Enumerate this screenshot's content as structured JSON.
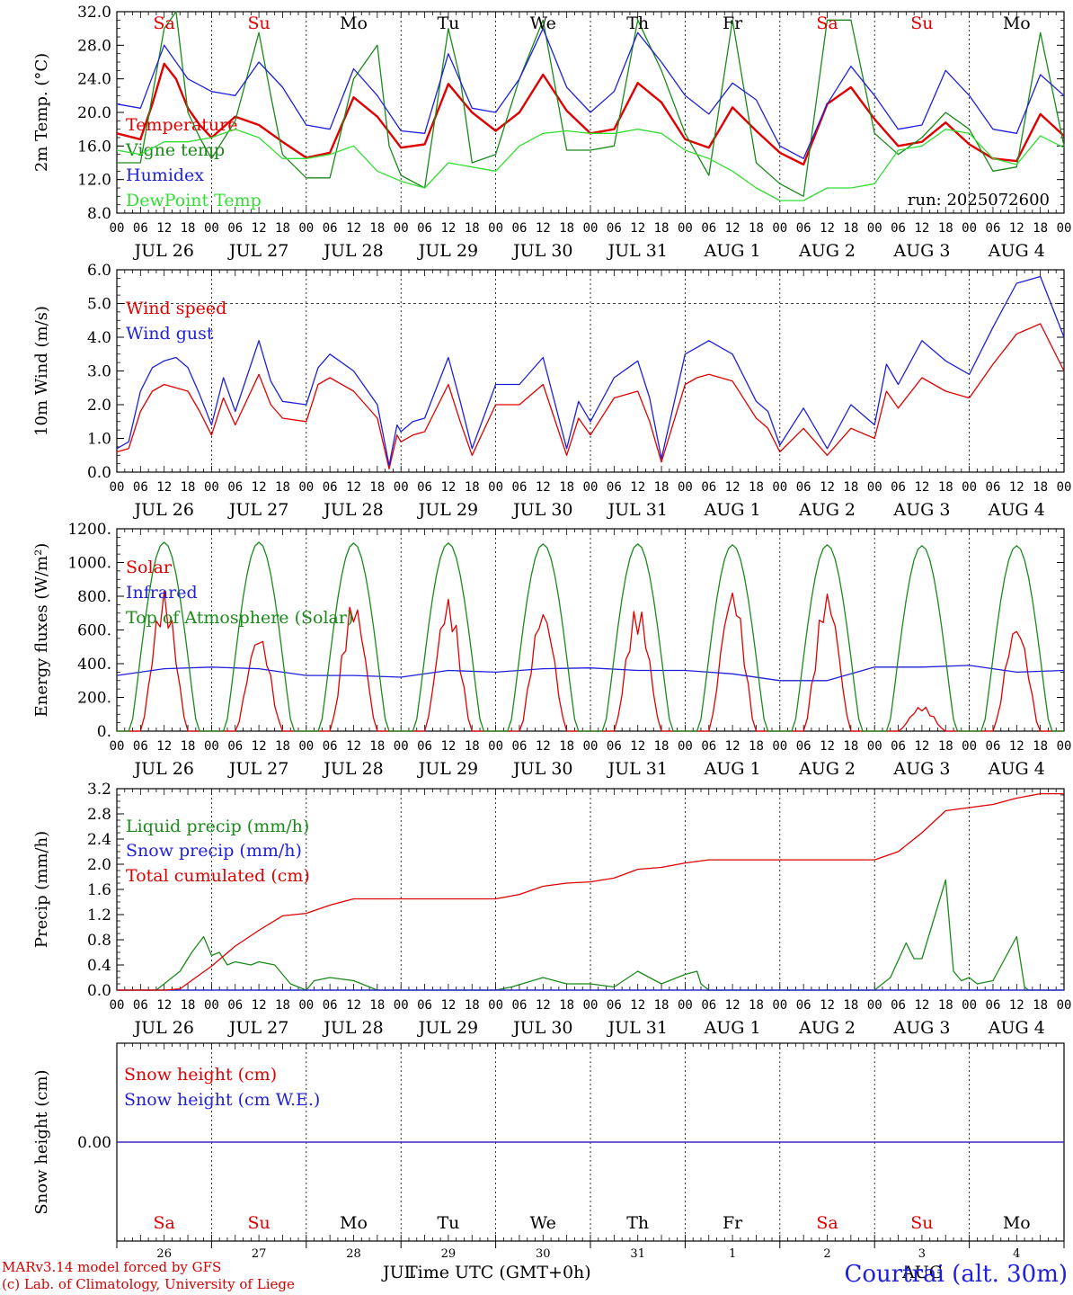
{
  "run_label": "run: 2025072600",
  "hour_ticks": [
    "00",
    "06",
    "12",
    "18"
  ],
  "date_labels": [
    "JUL 26",
    "JUL 27",
    "JUL 28",
    "JUL 29",
    "JUL 30",
    "JUL 31",
    "AUG  1",
    "AUG  2",
    "AUG  3",
    "AUG  4"
  ],
  "weekdays": [
    "Sa",
    "Su",
    "Mo",
    "Tu",
    "We",
    "Th",
    "Fr",
    "Sa",
    "Su",
    "Mo"
  ],
  "weekday_colors": [
    "#e00000",
    "#e00000",
    "#000000",
    "#000000",
    "#000000",
    "#000000",
    "#000000",
    "#e00000",
    "#e00000",
    "#000000"
  ],
  "day_numbers": [
    "26",
    "27",
    "28",
    "29",
    "30",
    "31",
    "1",
    "2",
    "3",
    "4"
  ],
  "footer": {
    "model_line": "MARv3.14 model forced by GFS",
    "copyright_line": "(c) Lab. of Climatology, University of Liege",
    "x_title": "Time UTC (GMT+0h)",
    "month_jul": "JUL",
    "month_aug": "AUG",
    "station": "Courtrai (alt. 30m)"
  },
  "chart_data": [
    {
      "type": "line",
      "ylabel": "2m Temp. (°C)",
      "ylim": [
        8,
        32
      ],
      "yticks": [
        "8.0",
        "12.0",
        "16.0",
        "20.0",
        "24.0",
        "28.0",
        "32.0"
      ],
      "x_unit": "hours since JUL 26 00 UTC",
      "series": [
        {
          "name": "Temperature",
          "color": "#e00000",
          "x": [
            0,
            6,
            9,
            12,
            15,
            18,
            21,
            24,
            30,
            36,
            42,
            48,
            54,
            60,
            66,
            72,
            78,
            84,
            90,
            96,
            102,
            108,
            114,
            120,
            126,
            132,
            138,
            144,
            150,
            156,
            162,
            168,
            174,
            180,
            186,
            192,
            198,
            204,
            210,
            216,
            222,
            228,
            234,
            240
          ],
          "values": [
            17.5,
            16.8,
            21,
            25.8,
            24,
            20.5,
            18.5,
            17,
            19.5,
            18.5,
            16.5,
            14.6,
            15.2,
            21.8,
            19.5,
            15.8,
            16.2,
            23.4,
            20,
            17.8,
            20,
            24.5,
            20.2,
            17.5,
            18,
            23.5,
            21.2,
            16.8,
            15.8,
            20.6,
            17.8,
            15.2,
            13.8,
            21,
            23,
            19.2,
            16,
            16.5,
            18.8,
            16.2,
            14.5,
            14.2,
            19.8,
            17.2
          ]
        },
        {
          "name": "Vigne temp",
          "color": "#1a8a1a",
          "x": [
            0,
            6,
            12,
            15,
            18,
            21,
            24,
            30,
            36,
            39,
            42,
            48,
            54,
            60,
            66,
            69,
            72,
            78,
            84,
            87,
            90,
            96,
            102,
            108,
            114,
            120,
            126,
            132,
            138,
            144,
            150,
            156,
            162,
            168,
            174,
            180,
            186,
            192,
            198,
            204,
            210,
            216,
            222,
            228,
            234,
            240
          ],
          "values": [
            14,
            14,
            30,
            32,
            20,
            17,
            14.5,
            19,
            29.5,
            22,
            15,
            12.2,
            12.2,
            24,
            28,
            16,
            12.5,
            11,
            30,
            24,
            14,
            15,
            24,
            31,
            15.5,
            15.5,
            16,
            31,
            25,
            17.5,
            12.5,
            31,
            14,
            11.5,
            10,
            31,
            31,
            17.5,
            15,
            17,
            20,
            18,
            13,
            13.5,
            29.5,
            16
          ]
        },
        {
          "name": "Humidex",
          "color": "#1f1fdd",
          "x": [
            0,
            6,
            12,
            18,
            24,
            30,
            36,
            42,
            48,
            54,
            60,
            66,
            72,
            78,
            84,
            90,
            96,
            102,
            108,
            114,
            120,
            126,
            132,
            138,
            144,
            150,
            156,
            162,
            168,
            174,
            180,
            186,
            192,
            198,
            204,
            210,
            216,
            222,
            228,
            234,
            240
          ],
          "values": [
            21,
            20.5,
            28,
            24,
            22.5,
            22,
            26,
            23,
            18.5,
            18,
            25.2,
            22,
            17.8,
            17.5,
            27,
            20.5,
            20,
            24,
            30,
            23,
            20,
            22.5,
            29.5,
            26,
            22,
            19.8,
            23.5,
            21.5,
            16,
            14.5,
            21,
            25.5,
            22,
            18,
            18.5,
            25,
            22,
            18,
            17.5,
            24.5,
            22
          ]
        },
        {
          "name": "DewPoint Temp",
          "color": "#33dd33",
          "x": [
            0,
            6,
            12,
            18,
            24,
            30,
            36,
            42,
            48,
            54,
            60,
            66,
            72,
            78,
            84,
            90,
            96,
            102,
            108,
            114,
            120,
            126,
            132,
            138,
            144,
            150,
            156,
            162,
            168,
            174,
            180,
            186,
            192,
            198,
            204,
            210,
            216,
            222,
            228,
            234,
            240
          ],
          "values": [
            15.5,
            15,
            16.5,
            16.5,
            17,
            18,
            17,
            14.5,
            14.5,
            15,
            16,
            13,
            11.8,
            11,
            14,
            13.5,
            13,
            16,
            17.5,
            17.8,
            17.5,
            17.5,
            18,
            17.5,
            15.5,
            14.5,
            13,
            11,
            9.5,
            9.5,
            11,
            11,
            11.5,
            15.5,
            16,
            18,
            17.5,
            14.5,
            13.8,
            17.2,
            15.8
          ]
        }
      ]
    },
    {
      "type": "line",
      "ylabel": "10m Wind (m/s)",
      "ylim": [
        0,
        6
      ],
      "yticks": [
        "0.0",
        "1.0",
        "2.0",
        "3.0",
        "4.0",
        "5.0",
        "6.0"
      ],
      "reference_line": 5.0,
      "series": [
        {
          "name": "Wind speed",
          "color": "#e00000",
          "x": [
            0,
            3,
            6,
            9,
            12,
            15,
            18,
            21,
            24,
            27,
            30,
            36,
            39,
            42,
            48,
            51,
            54,
            60,
            66,
            69,
            71,
            72,
            75,
            78,
            84,
            87,
            90,
            96,
            102,
            108,
            114,
            117,
            120,
            126,
            132,
            135,
            138,
            144,
            147,
            150,
            156,
            162,
            165,
            168,
            174,
            180,
            186,
            192,
            195,
            198,
            204,
            210,
            216,
            222,
            228,
            234,
            240
          ],
          "values": [
            0.6,
            0.7,
            1.8,
            2.4,
            2.6,
            2.5,
            2.4,
            1.8,
            1.1,
            2.2,
            1.4,
            2.9,
            2,
            1.6,
            1.5,
            2.6,
            2.8,
            2.4,
            1.6,
            0.1,
            1.1,
            0.9,
            1.1,
            1.2,
            2.6,
            1.5,
            0.5,
            2,
            2,
            2.6,
            0.5,
            1.6,
            1.1,
            2.2,
            2.4,
            1.5,
            0.3,
            2.6,
            2.8,
            2.9,
            2.7,
            1.6,
            1.3,
            0.6,
            1.3,
            0.5,
            1.3,
            1,
            2.4,
            1.9,
            2.8,
            2.4,
            2.2,
            3.2,
            4.1,
            4.4,
            3
          ]
        },
        {
          "name": "Wind gust",
          "color": "#1f1fdd",
          "x": [
            0,
            3,
            6,
            9,
            12,
            15,
            18,
            21,
            24,
            27,
            30,
            36,
            39,
            42,
            48,
            51,
            54,
            60,
            66,
            69,
            71,
            72,
            75,
            78,
            84,
            87,
            90,
            96,
            102,
            108,
            114,
            117,
            120,
            126,
            132,
            135,
            138,
            144,
            147,
            150,
            156,
            162,
            165,
            168,
            174,
            180,
            186,
            192,
            195,
            198,
            204,
            210,
            216,
            222,
            228,
            234,
            240
          ],
          "values": [
            0.7,
            0.9,
            2.4,
            3.1,
            3.3,
            3.4,
            3.1,
            2.3,
            1.4,
            2.8,
            1.8,
            3.9,
            2.7,
            2.1,
            2,
            3.1,
            3.5,
            3,
            2,
            0.2,
            1.4,
            1.2,
            1.5,
            1.6,
            3.4,
            2.1,
            0.7,
            2.6,
            2.6,
            3.4,
            0.7,
            2.1,
            1.5,
            2.8,
            3.3,
            2.2,
            0.4,
            3.5,
            3.7,
            3.9,
            3.5,
            2.1,
            1.8,
            0.8,
            1.9,
            0.7,
            2,
            1.4,
            3.2,
            2.6,
            3.9,
            3.3,
            2.9,
            4.3,
            5.6,
            5.8,
            4
          ]
        }
      ]
    },
    {
      "type": "line",
      "ylabel": "Energy fluxes (W/m²)",
      "ylim": [
        0,
        1200
      ],
      "yticks": [
        "0.",
        "200.",
        "400.",
        "600.",
        "800.",
        "1000.",
        "1200."
      ],
      "series": [
        {
          "name": "Solar",
          "color": "#e00000",
          "peaks_hour_utc": [
            12,
            12,
            12,
            12,
            12,
            12,
            12,
            12,
            12,
            12
          ],
          "values_peak": [
            830,
            580,
            780,
            790,
            730,
            750,
            850,
            830,
            150,
            640
          ]
        },
        {
          "name": "Infrared",
          "color": "#1f1fdd",
          "x": [
            0,
            12,
            24,
            36,
            48,
            60,
            72,
            84,
            96,
            108,
            120,
            132,
            144,
            156,
            168,
            180,
            192,
            204,
            216,
            228,
            240
          ],
          "values": [
            330,
            370,
            380,
            370,
            330,
            330,
            320,
            360,
            350,
            370,
            375,
            360,
            360,
            340,
            300,
            300,
            380,
            380,
            390,
            350,
            360
          ]
        },
        {
          "name": "Top of Atmosphere (Solar)",
          "color": "#1a8a1a",
          "peaks_hour_utc": [
            12,
            12,
            12,
            12,
            12,
            12,
            12,
            12,
            12,
            12
          ],
          "values_peak": [
            1120,
            1120,
            1115,
            1115,
            1110,
            1110,
            1105,
            1105,
            1100,
            1100
          ]
        }
      ]
    },
    {
      "type": "line",
      "ylabel": "Precip (mm/h)",
      "ylim": [
        0,
        3.2
      ],
      "yticks": [
        "0.0",
        "0.4",
        "0.8",
        "1.2",
        "1.6",
        "2.0",
        "2.4",
        "2.8",
        "3.2"
      ],
      "series": [
        {
          "name": "Liquid precip (mm/h)",
          "color": "#1a8a1a",
          "x": [
            0,
            10,
            12,
            16,
            19,
            22,
            24,
            26,
            28,
            30,
            34,
            36,
            40,
            44,
            48,
            50,
            54,
            60,
            66,
            96,
            100,
            108,
            114,
            120,
            126,
            132,
            138,
            144,
            147,
            148,
            150,
            192,
            196,
            200,
            202,
            204,
            210,
            212,
            214,
            216,
            218,
            222,
            228,
            230,
            231,
            234,
            240
          ],
          "values": [
            0,
            0,
            0.1,
            0.3,
            0.6,
            0.85,
            0.55,
            0.6,
            0.4,
            0.45,
            0.4,
            0.45,
            0.4,
            0.1,
            0,
            0.15,
            0.2,
            0.15,
            0,
            0,
            0.05,
            0.2,
            0.1,
            0.1,
            0.05,
            0.3,
            0.1,
            0.25,
            0.3,
            0.1,
            0,
            0,
            0.2,
            0.75,
            0.5,
            0.5,
            1.75,
            0.3,
            0.15,
            0.2,
            0.1,
            0.15,
            0.85,
            0.05,
            0,
            0,
            0
          ]
        },
        {
          "name": "Snow precip (mm/h)",
          "color": "#1f1fdd",
          "x": [
            0,
            240
          ],
          "values": [
            0,
            0
          ]
        },
        {
          "name": "Total cumulated (cm)",
          "color": "#e00000",
          "x": [
            0,
            12,
            16,
            20,
            24,
            30,
            36,
            42,
            48,
            54,
            60,
            66,
            72,
            84,
            96,
            102,
            108,
            114,
            120,
            126,
            132,
            138,
            144,
            150,
            156,
            168,
            180,
            192,
            198,
            204,
            210,
            216,
            222,
            228,
            234,
            240
          ],
          "values": [
            0,
            0,
            0.02,
            0.2,
            0.38,
            0.7,
            0.95,
            1.18,
            1.22,
            1.35,
            1.45,
            1.45,
            1.45,
            1.45,
            1.45,
            1.52,
            1.65,
            1.7,
            1.72,
            1.78,
            1.92,
            1.95,
            2.02,
            2.07,
            2.07,
            2.07,
            2.07,
            2.07,
            2.2,
            2.5,
            2.85,
            2.9,
            2.95,
            3.05,
            3.12,
            3.12
          ]
        }
      ]
    },
    {
      "type": "line",
      "ylabel": "Snow height (cm)",
      "ylim": [
        -1,
        1
      ],
      "yticks": [
        "0.00"
      ],
      "series": [
        {
          "name": "Snow height (cm)",
          "color": "#e00000",
          "x": [
            0,
            240
          ],
          "values": [
            0,
            0
          ]
        },
        {
          "name": "Snow height (cm W.E.)",
          "color": "#1f1fdd",
          "x": [
            0,
            240
          ],
          "values": [
            0,
            0
          ]
        }
      ]
    }
  ]
}
